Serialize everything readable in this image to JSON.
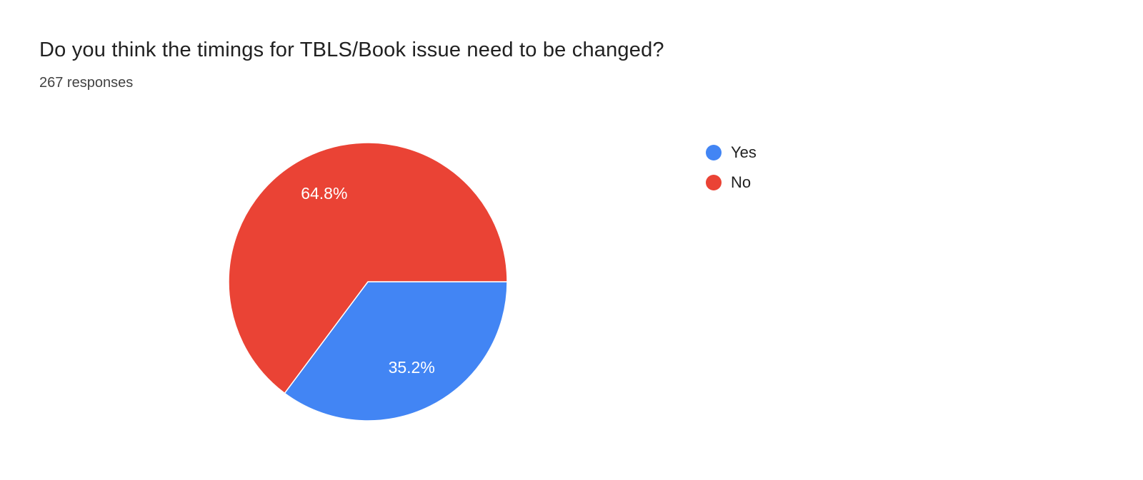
{
  "page": {
    "title": "Do you think the timings for TBLS/Book issue need to be changed?",
    "responses_label": "267 responses"
  },
  "chart_data": {
    "type": "pie",
    "title": "Do you think the timings for TBLS/Book issue need to be changed?",
    "subtitle": "267 responses",
    "series": [
      {
        "name": "Yes",
        "value_pct": 35.2,
        "label": "35.2%",
        "color": "#4285F4"
      },
      {
        "name": "No",
        "value_pct": 64.8,
        "label": "64.8%",
        "color": "#EA4335"
      }
    ],
    "legend_position": "right",
    "start_angle_deg": 90,
    "slice_label_color": "#FFFFFF",
    "slice_label_radius_factor": 0.7,
    "background_color": "#FFFFFF"
  }
}
